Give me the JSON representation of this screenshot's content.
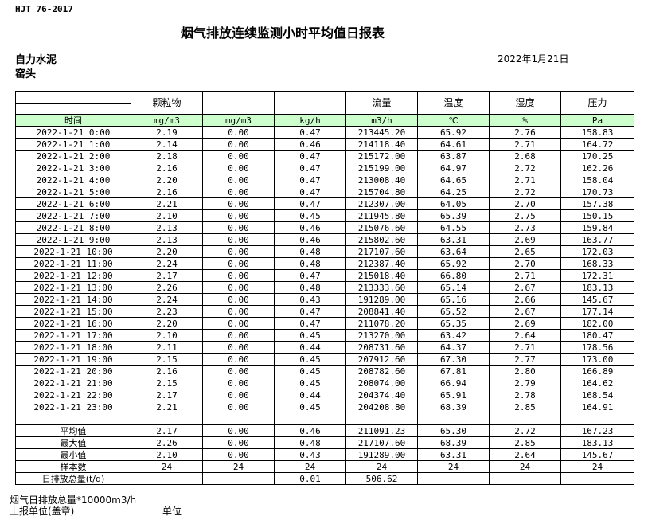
{
  "standard": "HJT  76-2017",
  "title": "烟气排放连续监测小时平均值日报表",
  "company": "自力水泥",
  "monitor_point": "窑头",
  "report_date": "2022年1月21日",
  "header": [
    "",
    "颗粒物",
    "",
    "",
    "流量",
    "温度",
    "湿度",
    "压力"
  ],
  "units": [
    "时间",
    "mg/m3",
    "mg/m3",
    "kg/h",
    "m3/h",
    "℃",
    "%",
    "Pa"
  ],
  "rows": [
    [
      "2022-1-21 0:00",
      "2.19",
      "0.00",
      "0.47",
      "213445.20",
      "65.92",
      "2.76",
      "158.83"
    ],
    [
      "2022-1-21 1:00",
      "2.14",
      "0.00",
      "0.46",
      "214118.40",
      "64.61",
      "2.71",
      "164.72"
    ],
    [
      "2022-1-21 2:00",
      "2.18",
      "0.00",
      "0.47",
      "215172.00",
      "63.87",
      "2.68",
      "170.25"
    ],
    [
      "2022-1-21 3:00",
      "2.16",
      "0.00",
      "0.47",
      "215199.00",
      "64.97",
      "2.72",
      "162.26"
    ],
    [
      "2022-1-21 4:00",
      "2.20",
      "0.00",
      "0.47",
      "213008.40",
      "64.65",
      "2.71",
      "158.04"
    ],
    [
      "2022-1-21 5:00",
      "2.16",
      "0.00",
      "0.47",
      "215704.80",
      "64.25",
      "2.72",
      "170.73"
    ],
    [
      "2022-1-21 6:00",
      "2.21",
      "0.00",
      "0.47",
      "212307.00",
      "64.05",
      "2.70",
      "157.38"
    ],
    [
      "2022-1-21 7:00",
      "2.10",
      "0.00",
      "0.45",
      "211945.80",
      "65.39",
      "2.75",
      "150.15"
    ],
    [
      "2022-1-21 8:00",
      "2.13",
      "0.00",
      "0.46",
      "215076.60",
      "64.55",
      "2.73",
      "159.84"
    ],
    [
      "2022-1-21 9:00",
      "2.13",
      "0.00",
      "0.46",
      "215802.60",
      "63.31",
      "2.69",
      "163.77"
    ],
    [
      "2022-1-21 10:00",
      "2.20",
      "0.00",
      "0.48",
      "217107.60",
      "63.64",
      "2.65",
      "172.03"
    ],
    [
      "2022-1-21 11:00",
      "2.24",
      "0.00",
      "0.48",
      "212387.40",
      "65.92",
      "2.70",
      "168.33"
    ],
    [
      "2022-1-21 12:00",
      "2.17",
      "0.00",
      "0.47",
      "215018.40",
      "66.80",
      "2.71",
      "172.31"
    ],
    [
      "2022-1-21 13:00",
      "2.26",
      "0.00",
      "0.48",
      "213333.60",
      "65.14",
      "2.67",
      "183.13"
    ],
    [
      "2022-1-21 14:00",
      "2.24",
      "0.00",
      "0.43",
      "191289.00",
      "65.16",
      "2.66",
      "145.67"
    ],
    [
      "2022-1-21 15:00",
      "2.23",
      "0.00",
      "0.47",
      "208841.40",
      "65.52",
      "2.67",
      "177.14"
    ],
    [
      "2022-1-21 16:00",
      "2.20",
      "0.00",
      "0.47",
      "211078.20",
      "65.35",
      "2.69",
      "182.00"
    ],
    [
      "2022-1-21 17:00",
      "2.10",
      "0.00",
      "0.45",
      "213270.00",
      "63.42",
      "2.64",
      "180.47"
    ],
    [
      "2022-1-21 18:00",
      "2.11",
      "0.00",
      "0.44",
      "208731.60",
      "64.37",
      "2.71",
      "178.56"
    ],
    [
      "2022-1-21 19:00",
      "2.15",
      "0.00",
      "0.45",
      "207912.60",
      "67.30",
      "2.77",
      "173.00"
    ],
    [
      "2022-1-21 20:00",
      "2.16",
      "0.00",
      "0.45",
      "208782.60",
      "67.81",
      "2.80",
      "166.89"
    ],
    [
      "2022-1-21 21:00",
      "2.15",
      "0.00",
      "0.45",
      "208074.00",
      "66.94",
      "2.79",
      "164.62"
    ],
    [
      "2022-1-21 22:00",
      "2.17",
      "0.00",
      "0.44",
      "204374.40",
      "65.91",
      "2.78",
      "168.54"
    ],
    [
      "2022-1-21 23:00",
      "2.21",
      "0.00",
      "0.45",
      "204208.80",
      "68.39",
      "2.85",
      "164.91"
    ],
    [
      "",
      "",
      "",
      "",
      "",
      "",
      "",
      ""
    ]
  ],
  "summary": [
    [
      "平均值",
      "2.17",
      "0.00",
      "0.46",
      "211091.23",
      "65.30",
      "2.72",
      "167.23"
    ],
    [
      "最大值",
      "2.26",
      "0.00",
      "0.48",
      "217107.60",
      "68.39",
      "2.85",
      "183.13"
    ],
    [
      "最小值",
      "2.10",
      "0.00",
      "0.43",
      "191289.00",
      "63.31",
      "2.64",
      "145.67"
    ],
    [
      "样本数",
      "24",
      "24",
      "24",
      "24",
      "24",
      "24",
      "24"
    ],
    [
      "日排放总量(t/d)",
      "",
      "",
      "0.01",
      "506.62",
      "",
      "",
      ""
    ]
  ],
  "footer": {
    "note": "烟气日排放总量*10000m3/h",
    "reporter_label": "上报单位(盖章)",
    "unit_label": "单位"
  }
}
